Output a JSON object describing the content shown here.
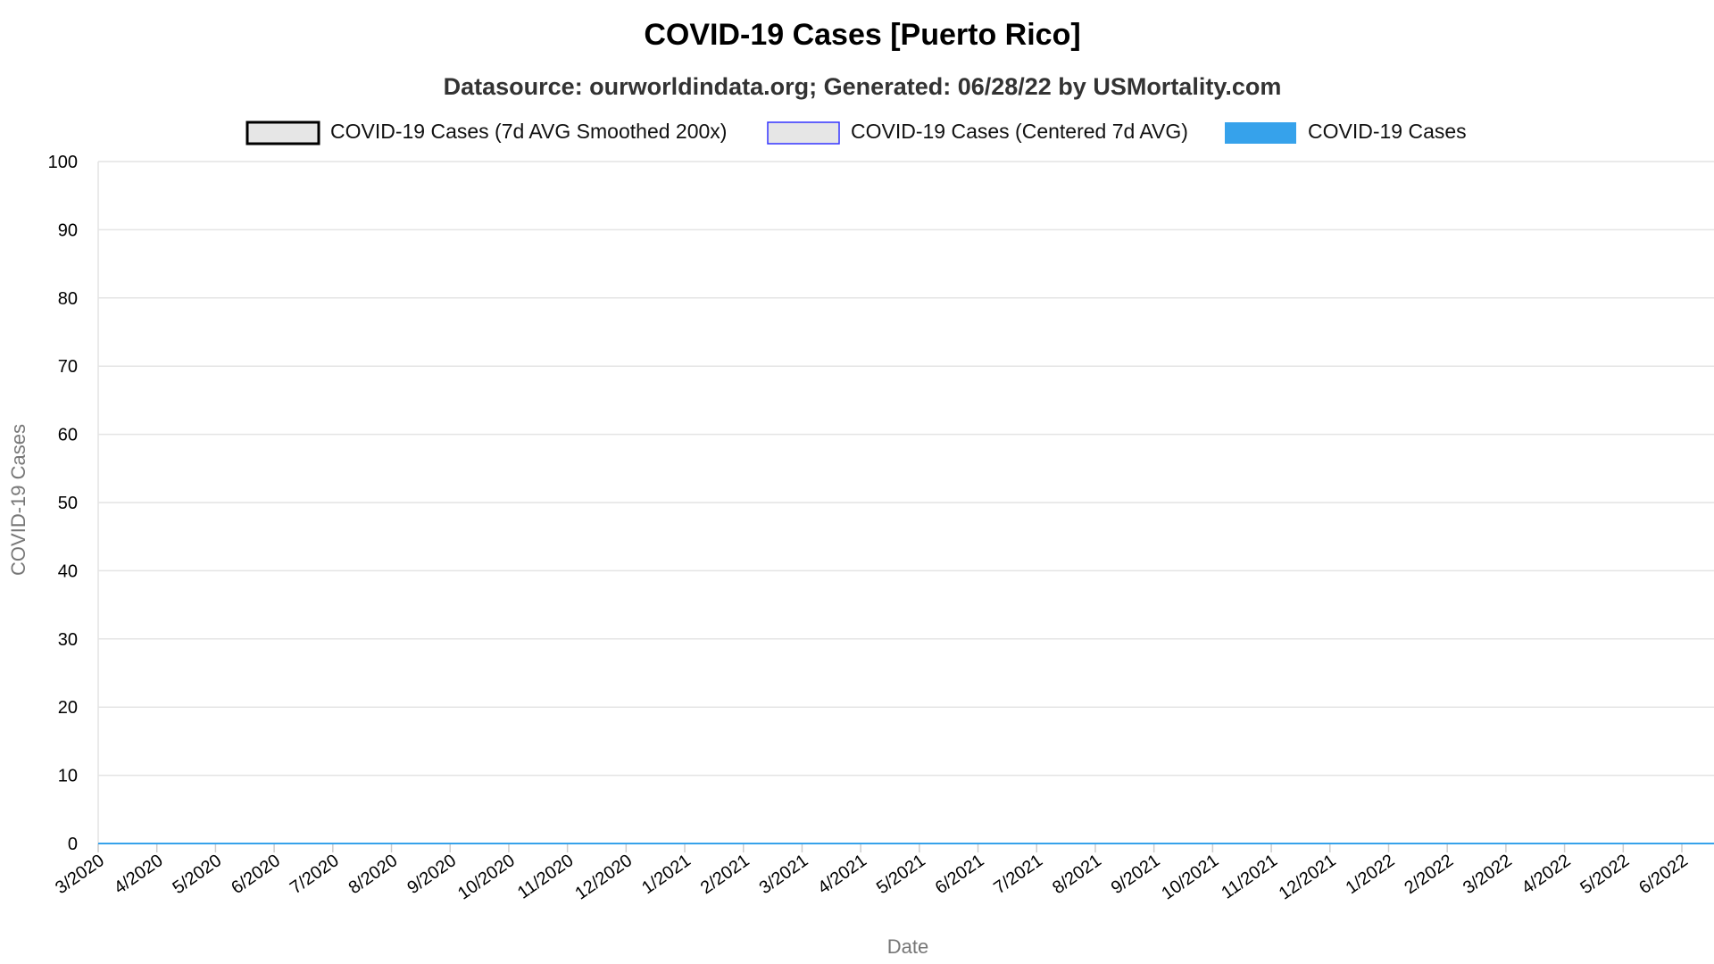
{
  "chart_data": {
    "type": "line",
    "title": "COVID-19 Cases [Puerto Rico]",
    "subtitle": "Datasource: ourworldindata.org; Generated: 06/28/22 by USMortality.com",
    "xlabel": "Date",
    "ylabel": "COVID-19 Cases",
    "ylim": [
      0,
      100
    ],
    "y_ticks": [
      "0",
      "10",
      "20",
      "30",
      "40",
      "50",
      "60",
      "70",
      "80",
      "90",
      "100"
    ],
    "x_ticks": [
      "3/2020",
      "4/2020",
      "5/2020",
      "6/2020",
      "7/2020",
      "8/2020",
      "9/2020",
      "10/2020",
      "11/2020",
      "12/2020",
      "1/2021",
      "2/2021",
      "3/2021",
      "4/2021",
      "5/2021",
      "6/2021",
      "7/2021",
      "8/2021",
      "9/2021",
      "10/2021",
      "11/2021",
      "12/2021",
      "1/2022",
      "2/2022",
      "3/2022",
      "4/2022",
      "5/2022",
      "6/2022"
    ],
    "grid": true,
    "legend_position": "top",
    "series": [
      {
        "name": "COVID-19 Cases (7d AVG Smoothed 200x)",
        "type": "line",
        "fill_color": "#e6e6e6",
        "border_color": "#000000",
        "values": [
          0,
          0,
          0,
          0,
          0,
          0,
          0,
          0,
          0,
          0,
          0,
          0,
          0,
          0,
          0,
          0,
          0,
          0,
          0,
          0,
          0,
          0,
          0,
          0,
          0,
          0,
          0,
          0
        ]
      },
      {
        "name": "COVID-19 Cases (Centered 7d AVG)",
        "type": "line",
        "fill_color": "#e6e6e6",
        "border_color": "#3333ff",
        "values": [
          0,
          0,
          0,
          0,
          0,
          0,
          0,
          0,
          0,
          0,
          0,
          0,
          0,
          0,
          0,
          0,
          0,
          0,
          0,
          0,
          0,
          0,
          0,
          0,
          0,
          0,
          0,
          0
        ]
      },
      {
        "name": "COVID-19 Cases",
        "type": "bar",
        "fill_color": "#36a2eb",
        "border_color": "#36a2eb",
        "values": [
          0,
          0,
          0,
          0,
          0,
          0,
          0,
          0,
          0,
          0,
          0,
          0,
          0,
          0,
          0,
          0,
          0,
          0,
          0,
          0,
          0,
          0,
          0,
          0,
          0,
          0,
          0,
          0
        ]
      }
    ]
  }
}
